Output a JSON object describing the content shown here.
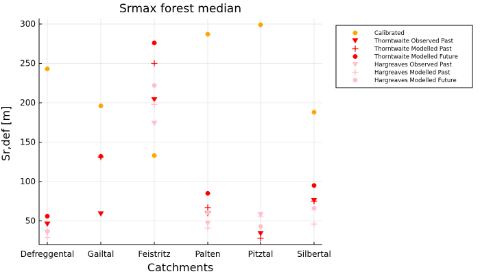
{
  "chart_data": {
    "type": "scatter",
    "title": "Srmax forest median",
    "xlabel": "Catchments",
    "ylabel": "Sr,def [m]",
    "categories": [
      "Defreggental",
      "Gailtal",
      "Feistritz",
      "Palten",
      "Pitztal",
      "Silbertal"
    ],
    "ylim": [
      20,
      307
    ],
    "yticks": [
      50,
      100,
      150,
      200,
      250,
      300
    ],
    "grid": true,
    "legend_position": "top-right outside",
    "series": [
      {
        "name": "Calibrated",
        "marker": "circle",
        "color": "#FFA500",
        "values": [
          243,
          196,
          133,
          287,
          299,
          188
        ]
      },
      {
        "name": "Thorntwaite Observed Past",
        "marker": "triangle-down",
        "color": "#FF0000",
        "values": [
          46,
          59,
          204,
          59,
          34,
          76
        ]
      },
      {
        "name": "Thorntwaite Modelled Past",
        "marker": "cross",
        "color": "#FF0000",
        "values": [
          null,
          131,
          250,
          67,
          28,
          75
        ]
      },
      {
        "name": "Thorntwaite Modelled Future",
        "marker": "circle",
        "color": "#FF0000",
        "values": [
          56,
          132,
          276,
          85,
          null,
          95
        ]
      },
      {
        "name": "Hargreaves Observed Past",
        "marker": "triangle-down",
        "color": "#FFC0CB",
        "values": [
          35,
          null,
          174,
          47,
          58,
          null
        ]
      },
      {
        "name": "Hargreaves Modelled Past",
        "marker": "cross",
        "color": "#FFC0CB",
        "values": [
          29,
          null,
          198,
          41,
          56,
          46
        ]
      },
      {
        "name": "Hargreaves Modelled Future",
        "marker": "circle",
        "color": "#FFC0CB",
        "values": [
          37,
          null,
          222,
          60,
          43,
          66
        ]
      }
    ]
  }
}
